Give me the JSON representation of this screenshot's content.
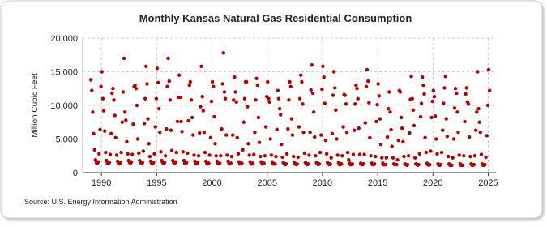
{
  "chart_data": {
    "type": "scatter",
    "title": "Monthly Kansas Natural Gas Residential Consumption",
    "y_label": "Million Cubic Feet",
    "source": "Source: U.S. Energy Information Administration",
    "color": "#b00000",
    "grid": true,
    "xlim": [
      1988.3,
      2025.7
    ],
    "xticks": [
      1990,
      1995,
      2000,
      2005,
      2010,
      2015,
      2020,
      2025
    ],
    "ylim": [
      0,
      20000
    ],
    "yticks": [
      0,
      {
        "value": 5000,
        "label": "5,000"
      },
      {
        "value": 10000,
        "label": "10,000"
      },
      {
        "value": 15000,
        "label": "15,000"
      },
      {
        "value": 20000,
        "label": "20,000"
      }
    ],
    "x": [
      1989.04,
      1989.13,
      1989.21,
      1989.29,
      1989.38,
      1989.46,
      1989.54,
      1989.63,
      1989.71,
      1989.79,
      1989.88,
      1989.96,
      1990.04,
      1990.13,
      1990.21,
      1990.29,
      1990.38,
      1990.46,
      1990.54,
      1990.63,
      1990.71,
      1990.79,
      1990.88,
      1990.96,
      1991.04,
      1991.13,
      1991.21,
      1991.29,
      1991.38,
      1991.46,
      1991.54,
      1991.63,
      1991.71,
      1991.79,
      1991.88,
      1991.96,
      1992.04,
      1992.13,
      1992.21,
      1992.29,
      1992.38,
      1992.46,
      1992.54,
      1992.63,
      1992.71,
      1992.79,
      1992.88,
      1992.96,
      1993.04,
      1993.13,
      1993.21,
      1993.29,
      1993.38,
      1993.46,
      1993.54,
      1993.63,
      1993.71,
      1993.79,
      1993.88,
      1993.96,
      1994.04,
      1994.13,
      1994.21,
      1994.29,
      1994.38,
      1994.46,
      1994.54,
      1994.63,
      1994.71,
      1994.79,
      1994.88,
      1994.96,
      1995.04,
      1995.13,
      1995.21,
      1995.29,
      1995.38,
      1995.46,
      1995.54,
      1995.63,
      1995.71,
      1995.79,
      1995.88,
      1995.96,
      1996.04,
      1996.13,
      1996.21,
      1996.29,
      1996.38,
      1996.46,
      1996.54,
      1996.63,
      1996.71,
      1996.79,
      1996.88,
      1996.96,
      1997.04,
      1997.13,
      1997.21,
      1997.29,
      1997.38,
      1997.46,
      1997.54,
      1997.63,
      1997.71,
      1997.79,
      1997.88,
      1997.96,
      1998.04,
      1998.13,
      1998.21,
      1998.29,
      1998.38,
      1998.46,
      1998.54,
      1998.63,
      1998.71,
      1998.79,
      1998.88,
      1998.96,
      1999.04,
      1999.13,
      1999.21,
      1999.29,
      1999.38,
      1999.46,
      1999.54,
      1999.63,
      1999.71,
      1999.79,
      1999.88,
      1999.96,
      2000.04,
      2000.13,
      2000.21,
      2000.29,
      2000.38,
      2000.46,
      2000.54,
      2000.63,
      2000.71,
      2000.79,
      2000.88,
      2000.96,
      2001.04,
      2001.13,
      2001.21,
      2001.29,
      2001.38,
      2001.46,
      2001.54,
      2001.63,
      2001.71,
      2001.79,
      2001.88,
      2001.96,
      2002.04,
      2002.13,
      2002.21,
      2002.29,
      2002.38,
      2002.46,
      2002.54,
      2002.63,
      2002.71,
      2002.79,
      2002.88,
      2002.96,
      2003.04,
      2003.13,
      2003.21,
      2003.29,
      2003.38,
      2003.46,
      2003.54,
      2003.63,
      2003.71,
      2003.79,
      2003.88,
      2003.96,
      2004.04,
      2004.13,
      2004.21,
      2004.29,
      2004.38,
      2004.46,
      2004.54,
      2004.63,
      2004.71,
      2004.79,
      2004.88,
      2004.96,
      2005.04,
      2005.13,
      2005.21,
      2005.29,
      2005.38,
      2005.46,
      2005.54,
      2005.63,
      2005.71,
      2005.79,
      2005.88,
      2005.96,
      2006.04,
      2006.13,
      2006.21,
      2006.29,
      2006.38,
      2006.46,
      2006.54,
      2006.63,
      2006.71,
      2006.79,
      2006.88,
      2006.96,
      2007.04,
      2007.13,
      2007.21,
      2007.29,
      2007.38,
      2007.46,
      2007.54,
      2007.63,
      2007.71,
      2007.79,
      2007.88,
      2007.96,
      2008.04,
      2008.13,
      2008.21,
      2008.29,
      2008.38,
      2008.46,
      2008.54,
      2008.63,
      2008.71,
      2008.79,
      2008.88,
      2008.96,
      2009.04,
      2009.13,
      2009.21,
      2009.29,
      2009.38,
      2009.46,
      2009.54,
      2009.63,
      2009.71,
      2009.79,
      2009.88,
      2009.96,
      2010.04,
      2010.13,
      2010.21,
      2010.29,
      2010.38,
      2010.46,
      2010.54,
      2010.63,
      2010.71,
      2010.79,
      2010.88,
      2010.96,
      2011.04,
      2011.13,
      2011.21,
      2011.29,
      2011.38,
      2011.46,
      2011.54,
      2011.63,
      2011.71,
      2011.79,
      2011.88,
      2011.96,
      2012.04,
      2012.13,
      2012.21,
      2012.29,
      2012.38,
      2012.46,
      2012.54,
      2012.63,
      2012.71,
      2012.79,
      2012.88,
      2012.96,
      2013.04,
      2013.13,
      2013.21,
      2013.29,
      2013.38,
      2013.46,
      2013.54,
      2013.63,
      2013.71,
      2013.79,
      2013.88,
      2013.96,
      2014.04,
      2014.13,
      2014.21,
      2014.29,
      2014.38,
      2014.46,
      2014.54,
      2014.63,
      2014.71,
      2014.79,
      2014.88,
      2014.96,
      2015.04,
      2015.13,
      2015.21,
      2015.29,
      2015.38,
      2015.46,
      2015.54,
      2015.63,
      2015.71,
      2015.79,
      2015.88,
      2015.96,
      2016.04,
      2016.13,
      2016.21,
      2016.29,
      2016.38,
      2016.46,
      2016.54,
      2016.63,
      2016.71,
      2016.79,
      2016.88,
      2016.96,
      2017.04,
      2017.13,
      2017.21,
      2017.29,
      2017.38,
      2017.46,
      2017.54,
      2017.63,
      2017.71,
      2017.79,
      2017.88,
      2017.96,
      2018.04,
      2018.13,
      2018.21,
      2018.29,
      2018.38,
      2018.46,
      2018.54,
      2018.63,
      2018.71,
      2018.79,
      2018.88,
      2018.96,
      2019.04,
      2019.13,
      2019.21,
      2019.29,
      2019.38,
      2019.46,
      2019.54,
      2019.63,
      2019.71,
      2019.79,
      2019.88,
      2019.96,
      2020.04,
      2020.13,
      2020.21,
      2020.29,
      2020.38,
      2020.46,
      2020.54,
      2020.63,
      2020.71,
      2020.79,
      2020.88,
      2020.96,
      2021.04,
      2021.13,
      2021.21,
      2021.29,
      2021.38,
      2021.46,
      2021.54,
      2021.63,
      2021.71,
      2021.79,
      2021.88,
      2021.96,
      2022.04,
      2022.13,
      2022.21,
      2022.29,
      2022.38,
      2022.46,
      2022.54,
      2022.63,
      2022.71,
      2022.79,
      2022.88,
      2022.96,
      2023.04,
      2023.13,
      2023.21,
      2023.29,
      2023.38,
      2023.46,
      2023.54,
      2023.63,
      2023.71,
      2023.79,
      2023.88,
      2023.96,
      2024.04,
      2024.13,
      2024.21,
      2024.29,
      2024.38,
      2024.46,
      2024.54,
      2024.63,
      2024.71,
      2024.79,
      2024.88,
      2024.96,
      2025.04,
      2025.13
    ],
    "values": [
      13800,
      12200,
      9000,
      5800,
      3400,
      1900,
      1500,
      1400,
      1600,
      2800,
      6400,
      12800,
      15000,
      11000,
      9200,
      6200,
      3000,
      1800,
      1400,
      1400,
      1500,
      2700,
      5800,
      11800,
      12500,
      10800,
      8500,
      5200,
      2600,
      1700,
      1400,
      1300,
      1500,
      3000,
      7500,
      12000,
      17000,
      9000,
      7800,
      4600,
      2800,
      1800,
      1500,
      1400,
      1600,
      2700,
      7200,
      12800,
      13000,
      12500,
      10000,
      5000,
      2900,
      1800,
      1500,
      1400,
      1500,
      3200,
      7300,
      11000,
      15800,
      13200,
      8000,
      4300,
      2400,
      1700,
      1400,
      1300,
      1500,
      2800,
      6800,
      11000,
      15500,
      13400,
      9500,
      6000,
      3100,
      1800,
      1500,
      1400,
      1500,
      2500,
      6500,
      12800,
      17000,
      13600,
      10800,
      6300,
      3300,
      1800,
      1500,
      1400,
      1600,
      3000,
      7600,
      11200,
      14500,
      11200,
      7600,
      6100,
      3100,
      1800,
      1400,
      1400,
      1500,
      2900,
      7700,
      13000,
      13500,
      10800,
      8200,
      5600,
      2600,
      1700,
      1400,
      1300,
      1500,
      2500,
      5900,
      9800,
      15800,
      11300,
      9200,
      6000,
      3000,
      1700,
      1400,
      1300,
      1400,
      2600,
      5200,
      10600,
      13500,
      12800,
      8300,
      4300,
      2500,
      1700,
      1400,
      1300,
      1400,
      2500,
      6500,
      13200,
      17800,
      12000,
      11000,
      5600,
      2600,
      1700,
      1400,
      1300,
      1400,
      2400,
      5600,
      10800,
      14200,
      12000,
      10500,
      5200,
      2800,
      1600,
      1300,
      1300,
      1400,
      3400,
      7500,
      11000,
      13500,
      13500,
      9800,
      4300,
      2600,
      1600,
      1300,
      1300,
      1400,
      2700,
      6000,
      10800,
      14000,
      13000,
      8200,
      4500,
      2400,
      1600,
      1300,
      1300,
      1400,
      2500,
      6800,
      11300,
      13500,
      11000,
      10500,
      5000,
      2600,
      1600,
      1300,
      1300,
      1300,
      2400,
      6400,
      12200,
      11000,
      9500,
      8600,
      4200,
      2300,
      1500,
      1300,
      1200,
      1300,
      2800,
      6500,
      10800,
      13500,
      12800,
      8000,
      5600,
      2400,
      1500,
      1300,
      1200,
      1300,
      2300,
      6800,
      11000,
      14500,
      13500,
      10200,
      6000,
      2900,
      1500,
      1300,
      1200,
      1300,
      2600,
      6000,
      12300,
      16000,
      11800,
      9000,
      5300,
      2500,
      1500,
      1300,
      1200,
      1300,
      3000,
      5600,
      12400,
      15800,
      14200,
      10300,
      4800,
      2800,
      1500,
      1300,
      1200,
      1300,
      2200,
      5800,
      11500,
      15000,
      12600,
      9300,
      5000,
      2600,
      1500,
      1200,
      1200,
      1300,
      2500,
      6800,
      11600,
      11500,
      10200,
      6000,
      3000,
      1900,
      1400,
      1200,
      1200,
      1300,
      2700,
      6300,
      10200,
      13000,
      12500,
      11000,
      6600,
      2700,
      1400,
      1200,
      1200,
      1300,
      2700,
      7400,
      12800,
      15300,
      13600,
      10400,
      5200,
      2500,
      1400,
      1200,
      1200,
      1300,
      2400,
      7600,
      10100,
      13200,
      11400,
      8000,
      4200,
      2200,
      1400,
      1200,
      1200,
      1200,
      2200,
      5300,
      9500,
      12000,
      9000,
      6400,
      3900,
      2200,
      1300,
      1200,
      1200,
      1200,
      1900,
      4800,
      12200,
      12000,
      8200,
      6600,
      4600,
      2400,
      1300,
      1200,
      1100,
      1200,
      2500,
      5900,
      10900,
      14300,
      11000,
      9300,
      7000,
      2200,
      1300,
      1200,
      1100,
      1200,
      2800,
      8300,
      10300,
      14200,
      13000,
      11700,
      5200,
      3000,
      1400,
      1200,
      1100,
      1200,
      3200,
      8200,
      10600,
      12200,
      11300,
      8400,
      5000,
      2800,
      1300,
      1100,
      1100,
      1200,
      3000,
      6300,
      10300,
      12600,
      14300,
      8000,
      5400,
      2400,
      1300,
      1100,
      1100,
      1100,
      2200,
      5000,
      9600,
      12500,
      11800,
      9000,
      6000,
      2600,
      1300,
      1100,
      1100,
      1100,
      2500,
      7600,
      11700,
      12600,
      10500,
      10200,
      5300,
      2400,
      1300,
      1100,
      1100,
      1200,
      2500,
      6300,
      9000,
      15000,
      9500,
      7500,
      6000,
      2700,
      1300,
      1100,
      1100,
      1200,
      2300,
      5500,
      10000,
      15300,
      12200
    ]
  }
}
